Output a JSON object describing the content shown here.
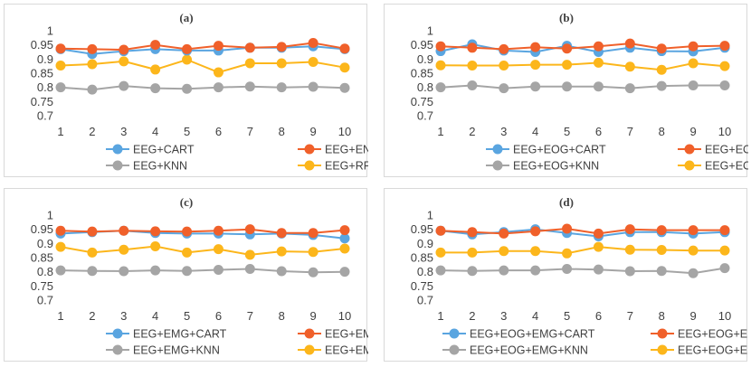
{
  "chart_data": [
    {
      "type": "line",
      "title": "(a)",
      "x": [
        1,
        2,
        3,
        4,
        5,
        6,
        7,
        8,
        9,
        10
      ],
      "ylim": [
        0.7,
        1.0
      ],
      "yticks": [
        0.7,
        0.75,
        0.8,
        0.85,
        0.9,
        0.95,
        1
      ],
      "ytick_labels": [
        "0.7",
        "0.75",
        "0.8",
        "0.85",
        "0.9",
        "0.95",
        "1"
      ],
      "grid": false,
      "legend": "bottom",
      "series": [
        {
          "name": "EEG+CART",
          "color": "#5aa5e0",
          "values": [
            0.935,
            0.918,
            0.928,
            0.935,
            0.93,
            0.93,
            0.94,
            0.94,
            0.945,
            0.935
          ]
        },
        {
          "name": "EEG+ENS",
          "color": "#f0602a",
          "values": [
            0.937,
            0.935,
            0.933,
            0.95,
            0.935,
            0.947,
            0.94,
            0.943,
            0.957,
            0.937
          ]
        },
        {
          "name": "EEG+KNN",
          "color": "#a5a5a5",
          "values": [
            0.8,
            0.792,
            0.805,
            0.797,
            0.795,
            0.8,
            0.803,
            0.8,
            0.802,
            0.798
          ]
        },
        {
          "name": "EEG+RF",
          "color": "#fcb61b",
          "values": [
            0.877,
            0.882,
            0.892,
            0.863,
            0.898,
            0.853,
            0.885,
            0.885,
            0.89,
            0.87
          ]
        }
      ]
    },
    {
      "type": "line",
      "title": "(b)",
      "x": [
        1,
        2,
        3,
        4,
        5,
        6,
        7,
        8,
        9,
        10
      ],
      "ylim": [
        0.7,
        1.0
      ],
      "yticks": [
        0.7,
        0.75,
        0.8,
        0.85,
        0.9,
        0.95,
        1
      ],
      "ytick_labels": [
        "0.7",
        "0.75",
        "0.8",
        "0.85",
        "0.9",
        "0.95",
        "1"
      ],
      "grid": false,
      "legend": "bottom",
      "series": [
        {
          "name": "EEG+EOG+CART",
          "color": "#5aa5e0",
          "values": [
            0.928,
            0.952,
            0.93,
            0.925,
            0.947,
            0.925,
            0.94,
            0.928,
            0.927,
            0.94
          ]
        },
        {
          "name": "EEG+EOG+ENS",
          "color": "#f0602a",
          "values": [
            0.945,
            0.94,
            0.935,
            0.942,
            0.937,
            0.945,
            0.955,
            0.937,
            0.945,
            0.947
          ]
        },
        {
          "name": "EEG+EOG+KNN",
          "color": "#a5a5a5",
          "values": [
            0.8,
            0.807,
            0.797,
            0.803,
            0.803,
            0.803,
            0.797,
            0.805,
            0.807,
            0.807
          ]
        },
        {
          "name": "EEG+EOG+RF",
          "color": "#fcb61b",
          "values": [
            0.878,
            0.877,
            0.877,
            0.88,
            0.88,
            0.887,
            0.873,
            0.862,
            0.885,
            0.875
          ]
        }
      ]
    },
    {
      "type": "line",
      "title": "(c)",
      "x": [
        1,
        2,
        3,
        4,
        5,
        6,
        7,
        8,
        9,
        10
      ],
      "ylim": [
        0.7,
        1.0
      ],
      "yticks": [
        0.7,
        0.75,
        0.8,
        0.85,
        0.9,
        0.95,
        1
      ],
      "ytick_labels": [
        "0.7",
        "0.75",
        "0.8",
        "0.85",
        "0.9",
        "0.95",
        "1"
      ],
      "grid": false,
      "legend": "bottom",
      "series": [
        {
          "name": "EEG+EMG+CART",
          "color": "#5aa5e0",
          "values": [
            0.935,
            0.94,
            0.945,
            0.937,
            0.935,
            0.935,
            0.932,
            0.935,
            0.93,
            0.918
          ]
        },
        {
          "name": "EEG+EMG+ENS",
          "color": "#f0602a",
          "values": [
            0.945,
            0.942,
            0.945,
            0.943,
            0.942,
            0.945,
            0.95,
            0.937,
            0.937,
            0.947
          ]
        },
        {
          "name": "EEG+EMG+KNN",
          "color": "#a5a5a5",
          "values": [
            0.805,
            0.803,
            0.802,
            0.805,
            0.803,
            0.807,
            0.81,
            0.802,
            0.798,
            0.8
          ]
        },
        {
          "name": "EEG+EMG+RF",
          "color": "#fcb61b",
          "values": [
            0.888,
            0.868,
            0.878,
            0.89,
            0.868,
            0.88,
            0.86,
            0.872,
            0.87,
            0.882
          ]
        }
      ]
    },
    {
      "type": "line",
      "title": "(d)",
      "x": [
        1,
        2,
        3,
        4,
        5,
        6,
        7,
        8,
        9,
        10
      ],
      "ylim": [
        0.7,
        1.0
      ],
      "yticks": [
        0.7,
        0.75,
        0.8,
        0.85,
        0.9,
        0.95,
        1
      ],
      "ytick_labels": [
        "0.7",
        "0.75",
        "0.8",
        "0.85",
        "0.9",
        "0.95",
        "1"
      ],
      "grid": false,
      "legend": "bottom",
      "series": [
        {
          "name": "EEG+EOG+EMG+CART",
          "color": "#5aa5e0",
          "values": [
            0.945,
            0.932,
            0.94,
            0.95,
            0.937,
            0.925,
            0.94,
            0.94,
            0.935,
            0.94
          ]
        },
        {
          "name": "EEG+EOG+EMG+ENS",
          "color": "#f0602a",
          "values": [
            0.945,
            0.94,
            0.935,
            0.943,
            0.952,
            0.935,
            0.95,
            0.947,
            0.947,
            0.947
          ]
        },
        {
          "name": "EEG+EOG+EMG+KNN",
          "color": "#a5a5a5",
          "values": [
            0.805,
            0.803,
            0.805,
            0.805,
            0.81,
            0.808,
            0.802,
            0.803,
            0.795,
            0.813
          ]
        },
        {
          "name": "EEG+EOG+EMG+RF",
          "color": "#fcb61b",
          "values": [
            0.868,
            0.868,
            0.873,
            0.873,
            0.865,
            0.888,
            0.878,
            0.877,
            0.875,
            0.875
          ]
        }
      ]
    }
  ]
}
